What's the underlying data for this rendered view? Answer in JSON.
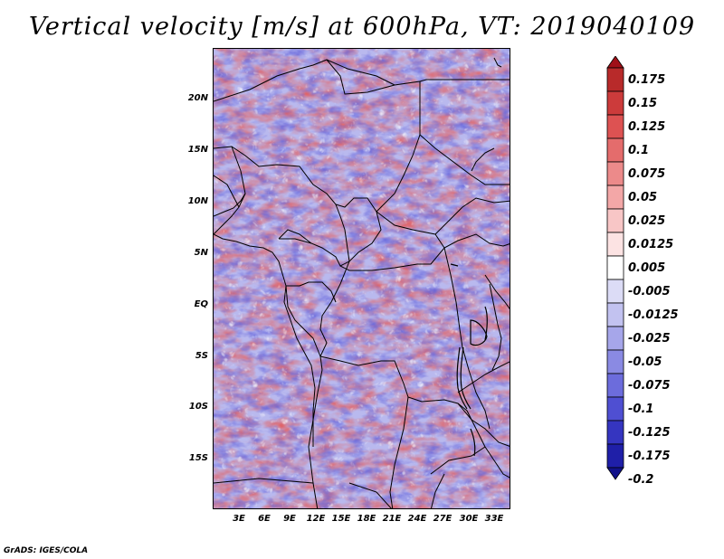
{
  "title": "Vertical velocity [m/s] at 600hPa, VT: 2019040109",
  "credit": "GrADS: IGES/COLA",
  "map": {
    "lat_labels": [
      "20N",
      "15N",
      "10N",
      "5N",
      "EQ",
      "5S",
      "10S",
      "15S"
    ],
    "lon_labels": [
      "3E",
      "6E",
      "9E",
      "12E",
      "15E",
      "18E",
      "21E",
      "24E",
      "27E",
      "30E",
      "33E"
    ],
    "lat_values": [
      20,
      15,
      10,
      5,
      0,
      -5,
      -10,
      -15
    ],
    "lon_values": [
      3,
      6,
      9,
      12,
      15,
      18,
      21,
      24,
      27,
      30,
      33
    ],
    "lon_range": [
      0,
      35
    ],
    "lat_range": [
      -20,
      25
    ]
  },
  "colorbar": {
    "labels": [
      "0.175",
      "0.15",
      "0.125",
      "0.1",
      "0.075",
      "0.05",
      "0.025",
      "0.0125",
      "0.005",
      "-0.005",
      "-0.0125",
      "-0.025",
      "-0.05",
      "-0.075",
      "-0.1",
      "-0.125",
      "-0.175",
      "-0.2"
    ],
    "colors": [
      "#a01018",
      "#b82a2a",
      "#cc3b3b",
      "#dd5252",
      "#e46c6c",
      "#ec8a8a",
      "#f3a7a7",
      "#f8c6c6",
      "#fce3e3",
      "#ffffff",
      "#dcdcf6",
      "#c2c2f0",
      "#a6a6ea",
      "#8a8ae3",
      "#6c6cdc",
      "#4f4fd2",
      "#3535c0",
      "#1f1fa8",
      "#12128a"
    ]
  }
}
